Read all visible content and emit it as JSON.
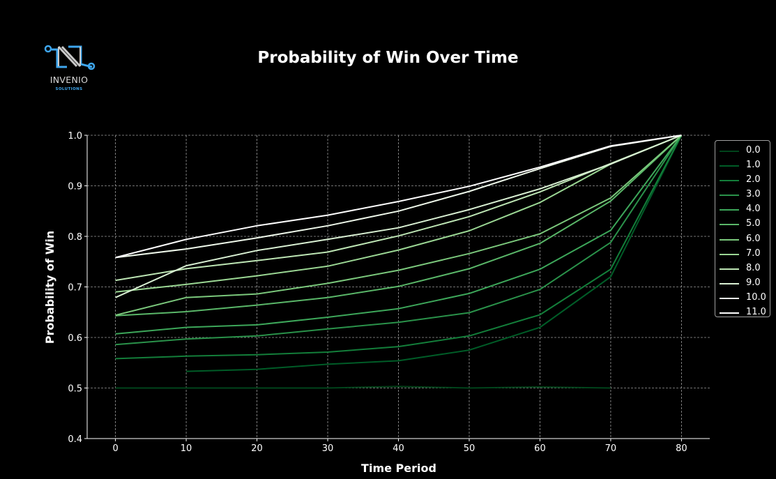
{
  "logo": {
    "name": "INVENIO",
    "tagline": "SOLUTIONS",
    "accent": "#3ea6ee"
  },
  "chart_data": {
    "type": "line",
    "title": "Probability of Win Over Time",
    "xlabel": "Time Period",
    "ylabel": "Probability of Win",
    "xlim": [
      -4,
      84
    ],
    "ylim": [
      0.4,
      1.0
    ],
    "xticks": [
      0,
      10,
      20,
      30,
      40,
      50,
      60,
      70,
      80
    ],
    "yticks": [
      0.4,
      0.5,
      0.6,
      0.7,
      0.8,
      0.9,
      1.0
    ],
    "grid": true,
    "legend_position": "right",
    "background": "#000000",
    "x": [
      0,
      10,
      20,
      30,
      40,
      50,
      60,
      70,
      80
    ],
    "series": [
      {
        "name": "0.0",
        "color": "#00441b",
        "values": [
          0.5,
          0.5,
          0.5,
          0.5,
          0.503,
          0.5,
          0.502,
          0.5,
          null
        ]
      },
      {
        "name": "1.0",
        "color": "#005c27",
        "values": [
          null,
          0.533,
          0.537,
          0.547,
          0.554,
          0.575,
          0.62,
          0.72,
          1.0
        ]
      },
      {
        "name": "2.0",
        "color": "#137e3a",
        "values": [
          0.558,
          0.563,
          0.566,
          0.571,
          0.582,
          0.603,
          0.645,
          0.735,
          1.0
        ]
      },
      {
        "name": "3.0",
        "color": "#2a924a",
        "values": [
          0.586,
          0.597,
          0.603,
          0.617,
          0.63,
          0.649,
          0.695,
          0.788,
          1.0
        ]
      },
      {
        "name": "4.0",
        "color": "#3da75a",
        "values": [
          0.607,
          0.62,
          0.625,
          0.64,
          0.657,
          0.687,
          0.735,
          0.812,
          1.0
        ]
      },
      {
        "name": "5.0",
        "color": "#5ab769",
        "values": [
          0.643,
          0.651,
          0.664,
          0.679,
          0.701,
          0.736,
          0.786,
          0.87,
          1.0
        ]
      },
      {
        "name": "6.0",
        "color": "#7bc87c",
        "values": [
          0.644,
          0.679,
          0.686,
          0.707,
          0.733,
          0.766,
          0.805,
          0.876,
          1.0
        ]
      },
      {
        "name": "7.0",
        "color": "#9bd794",
        "values": [
          0.69,
          0.705,
          0.722,
          0.741,
          0.773,
          0.811,
          0.867,
          0.943,
          1.0
        ]
      },
      {
        "name": "8.0",
        "color": "#bde5b4",
        "values": [
          0.713,
          0.736,
          0.752,
          0.769,
          0.801,
          0.839,
          0.888,
          0.944,
          1.0
        ]
      },
      {
        "name": "9.0",
        "color": "#d9f0d3",
        "values": [
          0.679,
          0.742,
          0.772,
          0.794,
          0.817,
          0.853,
          0.894,
          0.943,
          1.0
        ]
      },
      {
        "name": "10.0",
        "color": "#eef8ea",
        "values": [
          0.758,
          0.775,
          0.797,
          0.821,
          0.85,
          0.889,
          0.934,
          0.978,
          1.0
        ]
      },
      {
        "name": "11.0",
        "color": "#ffffff",
        "values": [
          0.758,
          0.794,
          0.821,
          0.842,
          0.869,
          0.899,
          0.937,
          0.979,
          1.0
        ]
      }
    ]
  }
}
